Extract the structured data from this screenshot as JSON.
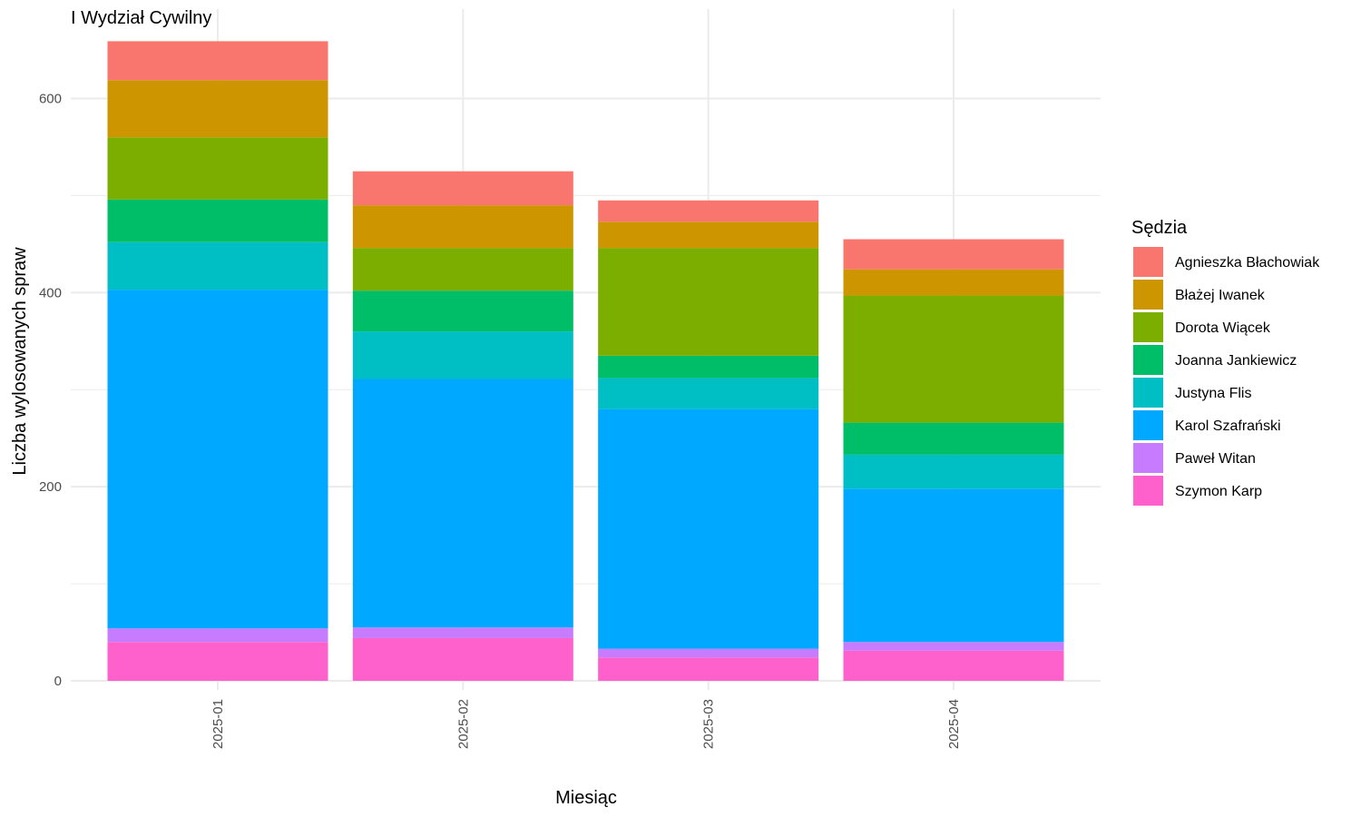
{
  "chart_data": {
    "type": "bar",
    "stacked": true,
    "title": "I Wydział Cywilny",
    "xlabel": "Miesiąc",
    "ylabel": "Liczba wylosowanych spraw",
    "legend_title": "Sędzia",
    "legend_position": "right",
    "grid": true,
    "ylim": [
      0,
      670
    ],
    "y_ticks": [
      0,
      200,
      400,
      600
    ],
    "categories": [
      "2025-01",
      "2025-02",
      "2025-03",
      "2025-04"
    ],
    "series": [
      {
        "name": "Agnieszka Błachowiak",
        "color": "#F8766D",
        "values": [
          40,
          35,
          22,
          31
        ]
      },
      {
        "name": "Błażej Iwanek",
        "color": "#CD9600",
        "values": [
          59,
          44,
          27,
          27
        ]
      },
      {
        "name": "Dorota Wiącek",
        "color": "#7CAE00",
        "values": [
          64,
          44,
          111,
          131
        ]
      },
      {
        "name": "Joanna Jankiewicz",
        "color": "#00BE67",
        "values": [
          44,
          42,
          23,
          33
        ]
      },
      {
        "name": "Justyna Flis",
        "color": "#00BFC4",
        "values": [
          49,
          49,
          32,
          35
        ]
      },
      {
        "name": "Karol Szafrański",
        "color": "#00A9FF",
        "values": [
          349,
          256,
          247,
          158
        ]
      },
      {
        "name": "Paweł Witan",
        "color": "#C77CFF",
        "values": [
          14,
          11,
          9,
          9
        ]
      },
      {
        "name": "Szymon Karp",
        "color": "#FF61CC",
        "values": [
          40,
          44,
          24,
          31
        ]
      }
    ]
  }
}
